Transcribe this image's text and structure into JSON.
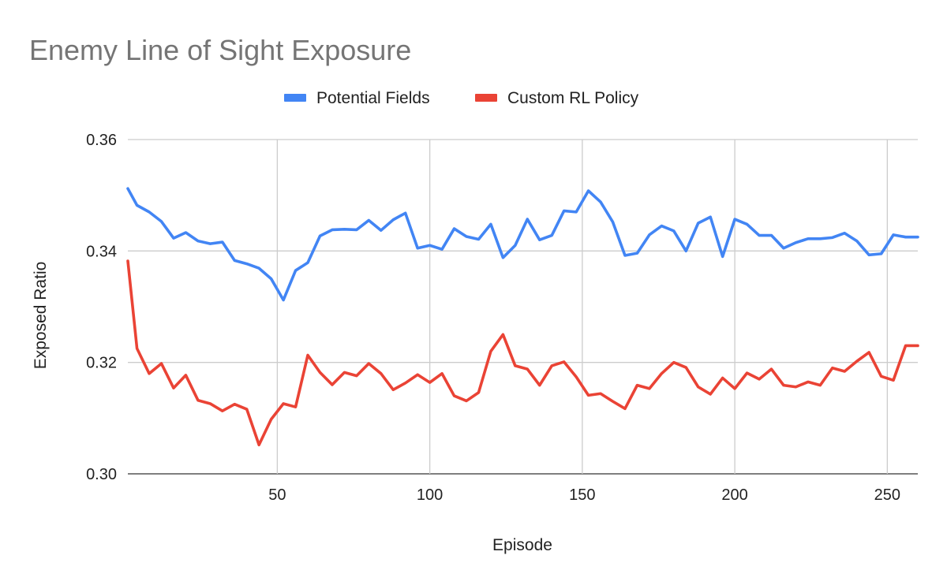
{
  "chart_data": {
    "type": "line",
    "title": "Enemy Line of Sight Exposure",
    "xlabel": "Episode",
    "ylabel": "Exposed Ratio",
    "xlim": [
      1,
      260
    ],
    "ylim": [
      0.3,
      0.36
    ],
    "x_ticks": [
      50,
      100,
      150,
      200,
      250
    ],
    "x_tick_labels": [
      "50",
      "100",
      "150",
      "200",
      "250"
    ],
    "y_ticks": [
      0.3,
      0.32,
      0.34,
      0.36
    ],
    "y_tick_labels": [
      "0.30",
      "0.32",
      "0.34",
      "0.36"
    ],
    "grid": true,
    "legend": "top-center",
    "x": [
      1,
      4,
      8,
      12,
      16,
      20,
      24,
      28,
      32,
      36,
      40,
      44,
      48,
      52,
      56,
      60,
      64,
      68,
      72,
      76,
      80,
      84,
      88,
      92,
      96,
      100,
      104,
      108,
      112,
      116,
      120,
      124,
      128,
      132,
      136,
      140,
      144,
      148,
      152,
      156,
      160,
      164,
      168,
      172,
      176,
      180,
      184,
      188,
      192,
      196,
      200,
      204,
      208,
      212,
      216,
      220,
      224,
      228,
      232,
      236,
      240,
      244,
      248,
      252,
      256,
      260
    ],
    "series": [
      {
        "name": "Potential Fields",
        "color": "#4285f4",
        "values": [
          0.3512,
          0.3482,
          0.347,
          0.3453,
          0.3423,
          0.3433,
          0.3418,
          0.3413,
          0.3416,
          0.3383,
          0.3377,
          0.3369,
          0.335,
          0.3312,
          0.3365,
          0.3379,
          0.3427,
          0.3438,
          0.3439,
          0.3438,
          0.3455,
          0.3437,
          0.3456,
          0.3468,
          0.3405,
          0.341,
          0.3403,
          0.344,
          0.3426,
          0.3421,
          0.3448,
          0.3388,
          0.341,
          0.3457,
          0.342,
          0.3428,
          0.3472,
          0.347,
          0.3508,
          0.3488,
          0.3452,
          0.3392,
          0.3396,
          0.3429,
          0.3445,
          0.3436,
          0.34,
          0.345,
          0.3461,
          0.339,
          0.3457,
          0.3448,
          0.3428,
          0.3428,
          0.3405,
          0.3415,
          0.3422,
          0.3422,
          0.3424,
          0.3432,
          0.3418,
          0.3393,
          0.3395,
          0.3429,
          0.3425,
          0.3425
        ]
      },
      {
        "name": "Custom RL Policy",
        "color": "#ea4335",
        "values": [
          0.3382,
          0.3225,
          0.318,
          0.3198,
          0.3154,
          0.3177,
          0.3132,
          0.3126,
          0.3113,
          0.3125,
          0.3116,
          0.3052,
          0.3098,
          0.3126,
          0.312,
          0.3213,
          0.3182,
          0.316,
          0.3182,
          0.3176,
          0.3198,
          0.318,
          0.3151,
          0.3163,
          0.3178,
          0.3164,
          0.318,
          0.314,
          0.3131,
          0.3146,
          0.322,
          0.325,
          0.3194,
          0.3188,
          0.3159,
          0.3194,
          0.3201,
          0.3174,
          0.3141,
          0.3144,
          0.313,
          0.3117,
          0.3159,
          0.3153,
          0.318,
          0.32,
          0.3191,
          0.3156,
          0.3143,
          0.3172,
          0.3153,
          0.3181,
          0.317,
          0.3188,
          0.3159,
          0.3156,
          0.3165,
          0.3159,
          0.319,
          0.3184,
          0.3202,
          0.3218,
          0.3175,
          0.3168,
          0.323,
          0.323
        ]
      }
    ]
  }
}
